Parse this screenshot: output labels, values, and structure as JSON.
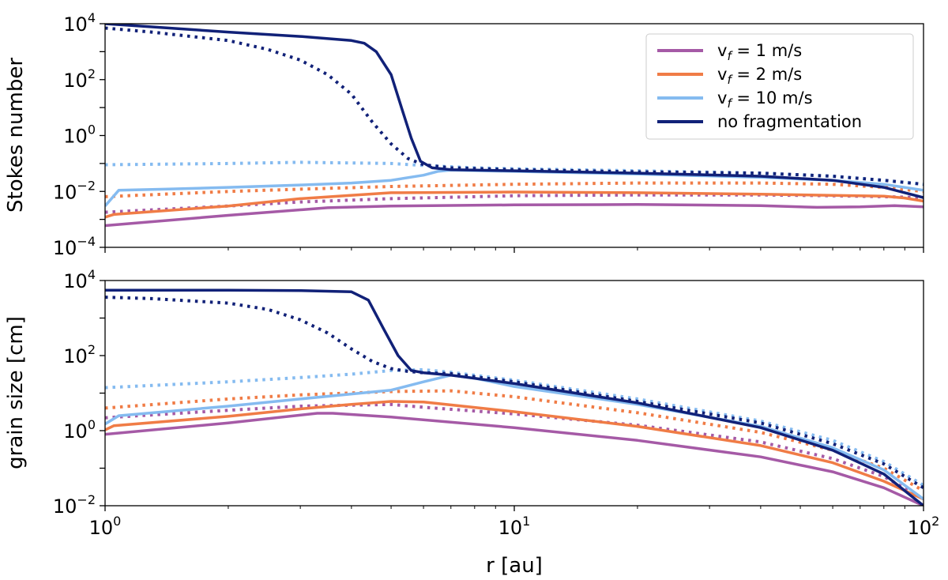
{
  "chart_data": {
    "type": "line",
    "xscale": "log",
    "yscale": "log",
    "xlim": [
      1,
      100
    ],
    "xlabel": "r [au]",
    "x_ticks": [
      1,
      10,
      100
    ],
    "x_tick_labels": [
      {
        "base": "10",
        "exp": "0"
      },
      {
        "base": "10",
        "exp": "1"
      },
      {
        "base": "10",
        "exp": "2"
      }
    ],
    "legend": {
      "placement": "top-right",
      "entries": [
        {
          "label": "v",
          "sub": "f",
          "suffix": " = 1 m/s"
        },
        {
          "label": "v",
          "sub": "f",
          "suffix": " = 2 m/s"
        },
        {
          "label": "v",
          "sub": "f",
          "suffix": " = 10 m/s"
        },
        {
          "label": "no fragmentation",
          "sub": "",
          "suffix": ""
        }
      ]
    },
    "series_styles": [
      {
        "name": "v_f = 1 m/s",
        "color": "#a55aa6"
      },
      {
        "name": "v_f = 2 m/s",
        "color": "#f07c46"
      },
      {
        "name": "v_f = 10 m/s",
        "color": "#85bbf0"
      },
      {
        "name": "no fragmentation",
        "color": "#112178"
      }
    ],
    "line_styles": {
      "solid": "simulation",
      "dotted": "model"
    },
    "panels": [
      {
        "ylabel": "Stokes number",
        "ylim": [
          0.0001,
          10000
        ],
        "y_ticks": [
          0.0001,
          0.01,
          1,
          100,
          10000
        ],
        "y_tick_labels": [
          {
            "base": "10",
            "exp": "−4"
          },
          {
            "base": "10",
            "exp": "−2"
          },
          {
            "base": "10",
            "exp": "0"
          },
          {
            "base": "10",
            "exp": "2"
          },
          {
            "base": "10",
            "exp": "4"
          }
        ],
        "series": [
          {
            "name": "v_f = 1 m/s",
            "style": "solid",
            "x": [
              1,
              2,
              3.5,
              5,
              10,
              20,
              40,
              55,
              70,
              85,
              100
            ],
            "y": [
              0.0006,
              0.0014,
              0.0026,
              0.003,
              0.0033,
              0.0034,
              0.0031,
              0.0027,
              0.0028,
              0.0031,
              0.0028
            ]
          },
          {
            "name": "v_f = 1 m/s",
            "style": "dotted",
            "x": [
              1,
              2,
              3,
              5,
              8,
              10,
              20,
              40,
              60,
              80,
              100
            ],
            "y": [
              0.0018,
              0.003,
              0.0042,
              0.0055,
              0.0065,
              0.007,
              0.0075,
              0.0075,
              0.007,
              0.0065,
              0.006
            ]
          },
          {
            "name": "v_f = 2 m/s",
            "style": "solid",
            "x": [
              1,
              1.05,
              2,
              3,
              5,
              10,
              20,
              40,
              60,
              80,
              90,
              100
            ],
            "y": [
              0.0012,
              0.0015,
              0.003,
              0.0055,
              0.009,
              0.0095,
              0.009,
              0.008,
              0.0072,
              0.0068,
              0.0058,
              0.0045
            ]
          },
          {
            "name": "v_f = 2 m/s",
            "style": "dotted",
            "x": [
              1,
              2,
              3,
              5,
              10,
              20,
              40,
              60,
              80,
              100
            ],
            "y": [
              0.0065,
              0.01,
              0.012,
              0.015,
              0.018,
              0.02,
              0.02,
              0.018,
              0.014,
              0.01
            ]
          },
          {
            "name": "v_f = 10 m/s",
            "style": "solid",
            "x": [
              1,
              1.08,
              1.4,
              2,
              3,
              4,
              5,
              6,
              6.5,
              7,
              10,
              20,
              40,
              60,
              80,
              100
            ],
            "y": [
              0.003,
              0.011,
              0.012,
              0.014,
              0.017,
              0.02,
              0.025,
              0.038,
              0.052,
              0.058,
              0.052,
              0.042,
              0.032,
              0.025,
              0.018,
              0.011
            ]
          },
          {
            "name": "v_f = 10 m/s",
            "style": "dotted",
            "x": [
              1,
              2,
              3,
              5,
              6,
              8,
              10,
              20,
              40,
              60,
              80,
              100
            ],
            "y": [
              0.09,
              0.1,
              0.11,
              0.1,
              0.085,
              0.07,
              0.065,
              0.055,
              0.045,
              0.035,
              0.025,
              0.018
            ]
          },
          {
            "name": "no fragmentation",
            "style": "solid",
            "x": [
              1,
              2,
              3,
              4,
              4.3,
              4.6,
              5,
              5.3,
              5.6,
              5.9,
              6.3,
              7,
              10,
              20,
              40,
              60,
              80,
              100
            ],
            "y": [
              10000,
              5000,
              3500,
              2500,
              2000,
              1000,
              150,
              10,
              0.8,
              0.12,
              0.07,
              0.06,
              0.055,
              0.045,
              0.035,
              0.025,
              0.014,
              0.006
            ]
          },
          {
            "name": "no fragmentation",
            "style": "dotted",
            "x": [
              1,
              1.3,
              2,
              2.5,
              3,
              3.5,
              4,
              4.5,
              5,
              5.5,
              6,
              7,
              10,
              20,
              40,
              60,
              80,
              100
            ],
            "y": [
              7000,
              5000,
              2500,
              1200,
              500,
              150,
              30,
              3,
              0.5,
              0.15,
              0.09,
              0.07,
              0.06,
              0.05,
              0.045,
              0.035,
              0.025,
              0.018
            ]
          }
        ]
      },
      {
        "ylabel": "grain size [cm]",
        "ylim": [
          0.01,
          10000
        ],
        "y_ticks": [
          0.01,
          1,
          100,
          10000
        ],
        "y_tick_labels": [
          {
            "base": "10",
            "exp": "−2"
          },
          {
            "base": "10",
            "exp": "0"
          },
          {
            "base": "10",
            "exp": "2"
          },
          {
            "base": "10",
            "exp": "4"
          }
        ],
        "series": [
          {
            "name": "v_f = 1 m/s",
            "style": "solid",
            "x": [
              1,
              2,
              3.3,
              3.6,
              5,
              10,
              20,
              40,
              60,
              80,
              100
            ],
            "y": [
              0.8,
              1.6,
              2.9,
              2.9,
              2.3,
              1.2,
              0.55,
              0.2,
              0.08,
              0.03,
              0.01
            ]
          },
          {
            "name": "v_f = 1 m/s",
            "style": "dotted",
            "x": [
              1,
              2,
              3,
              5,
              6,
              10,
              20,
              40,
              60,
              80,
              100
            ],
            "y": [
              2.2,
              3.5,
              4.5,
              5,
              4.2,
              2.8,
              1.4,
              0.5,
              0.18,
              0.06,
              0.015
            ]
          },
          {
            "name": "v_f = 2 m/s",
            "style": "solid",
            "x": [
              1,
              1.05,
              2,
              3,
              4,
              5,
              6,
              10,
              20,
              40,
              60,
              80,
              100
            ],
            "y": [
              1.05,
              1.35,
              2.4,
              3.8,
              5,
              6,
              5.8,
              3.2,
              1.3,
              0.4,
              0.14,
              0.045,
              0.015
            ]
          },
          {
            "name": "v_f = 2 m/s",
            "style": "dotted",
            "x": [
              1,
              2,
              3,
              5,
              7,
              10,
              20,
              40,
              60,
              80,
              100
            ],
            "y": [
              4,
              7,
              9,
              11,
              11.5,
              8,
              3,
              0.9,
              0.3,
              0.1,
              0.025
            ]
          },
          {
            "name": "v_f = 10 m/s",
            "style": "solid",
            "x": [
              1,
              1.08,
              2,
              3,
              4,
              5,
              6,
              7,
              8,
              10,
              20,
              40,
              60,
              80,
              100
            ],
            "y": [
              1.5,
              2.5,
              4.5,
              7,
              9.5,
              12,
              20,
              30,
              25,
              15,
              5,
              1.3,
              0.35,
              0.09,
              0.015
            ]
          },
          {
            "name": "v_f = 10 m/s",
            "style": "dotted",
            "x": [
              1,
              2,
              3,
              4,
              5,
              6,
              7,
              10,
              20,
              40,
              60,
              80,
              100
            ],
            "y": [
              14,
              20,
              26,
              32,
              40,
              42,
              36,
              22,
              7,
              1.8,
              0.55,
              0.15,
              0.035
            ]
          },
          {
            "name": "no fragmentation",
            "style": "solid",
            "x": [
              1,
              2,
              3,
              4,
              4.4,
              4.8,
              5.2,
              5.6,
              6,
              7,
              10,
              20,
              40,
              60,
              80,
              100
            ],
            "y": [
              5500,
              5500,
              5400,
              5000,
              3000,
              500,
              100,
              40,
              35,
              30,
              18,
              5.5,
              1.2,
              0.3,
              0.07,
              0.01
            ]
          },
          {
            "name": "no fragmentation",
            "style": "dotted",
            "x": [
              1,
              1.3,
              2,
              2.5,
              3,
              3.5,
              4,
              4.5,
              5,
              5.5,
              6,
              7,
              10,
              20,
              40,
              60,
              80,
              100
            ],
            "y": [
              3600,
              3300,
              2500,
              1700,
              900,
              400,
              150,
              70,
              45,
              38,
              35,
              33,
              20,
              6,
              1.6,
              0.45,
              0.13,
              0.03
            ]
          }
        ]
      }
    ]
  }
}
